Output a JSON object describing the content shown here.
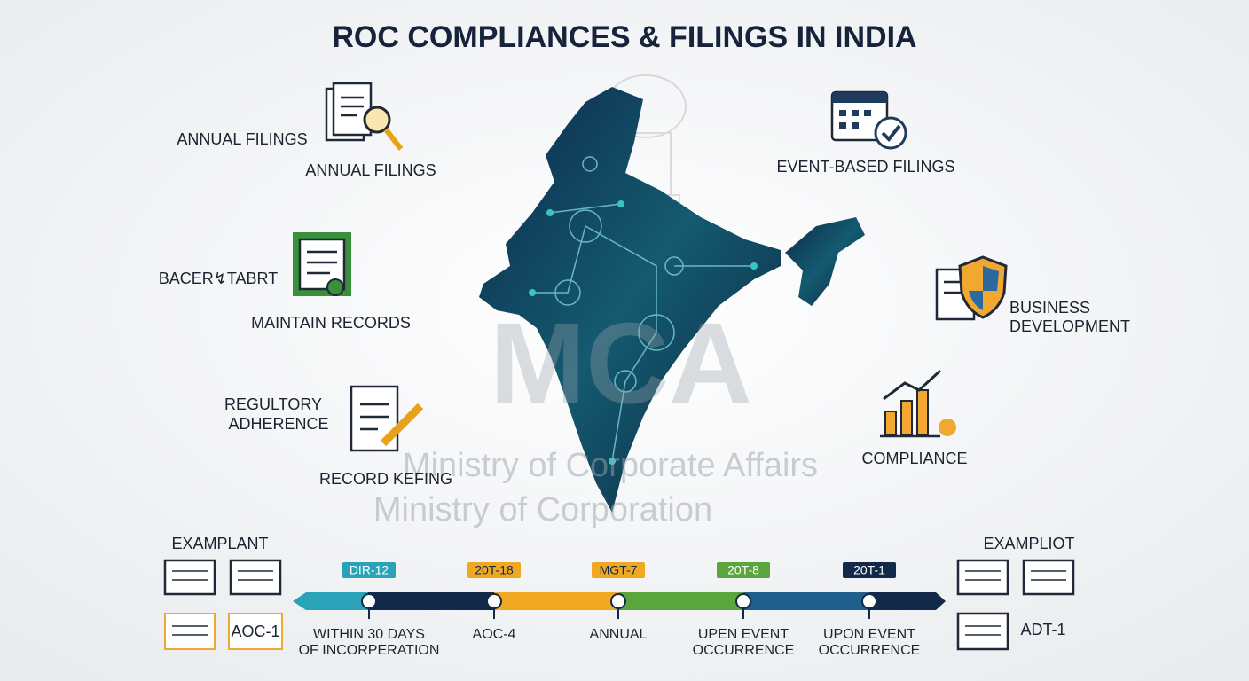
{
  "title": "ROC COMPLIANCES & FILINGS IN INDIA",
  "left": {
    "annual_label": "ANNUAL FILINGS",
    "annual_caption": "ANNUAL FILINGS",
    "bacer": "BACER↯TABRT",
    "maintain": "MAINTAIN RECORDS",
    "regulatory": [
      "REGULTORY",
      "ADHERENCE"
    ],
    "record": "RECORD KEFING"
  },
  "right": {
    "event": "EVENT-BASED FILINGS",
    "business": [
      "BUSINESS",
      "DEVELOPMENT"
    ],
    "compliance": "COMPLIANCE"
  },
  "watermark": {
    "logo": "MCA",
    "line1": "Ministry of Corporate Affairs",
    "line2": "Ministry of Corporation"
  },
  "timeline": {
    "left_heading": "EXAMPLANT",
    "left_form": "AOC-1",
    "right_heading": "EXAMPLIOT",
    "right_form": "ADT-1",
    "steps": [
      {
        "tag": "DIR-12",
        "caption": [
          "WITHIN 30 DAYS",
          "OF INCORPERATION"
        ]
      },
      {
        "tag": "20T-18",
        "caption": [
          "AOC-4"
        ]
      },
      {
        "tag": "MGT-7",
        "caption": [
          "ANNUAL"
        ]
      },
      {
        "tag": "20T-8",
        "caption": [
          "UPEN EVENT",
          "OCCURRENCE"
        ]
      },
      {
        "tag": "20T-1",
        "caption": [
          "UPON EVENT",
          "OCCURRENCE"
        ]
      }
    ]
  }
}
